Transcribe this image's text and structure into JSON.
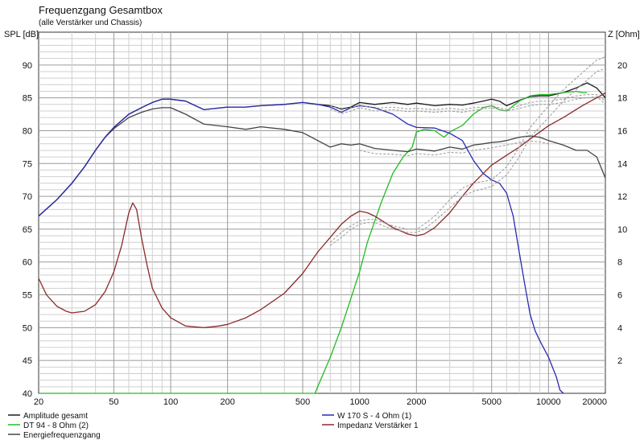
{
  "chart_data": {
    "type": "line",
    "title": "Frequenzgang Gesamtbox",
    "subtitle": "(alle Verstärker und Chassis)",
    "ylabel": "SPL [dB]",
    "y2label": "Z [Ohm]",
    "xscale": "log",
    "xlim": [
      20,
      20000
    ],
    "ylim": [
      40,
      95
    ],
    "y2lim": [
      0,
      22
    ],
    "xticks": [
      "20",
      "50",
      "100",
      "200",
      "500",
      "1000",
      "2000",
      "5000",
      "10000",
      "20000"
    ],
    "yticks": [
      "40",
      "45",
      "50",
      "55",
      "60",
      "65",
      "70",
      "75",
      "80",
      "85",
      "90"
    ],
    "y2ticks": [
      "2",
      "4",
      "6",
      "8",
      "10",
      "12",
      "14",
      "16",
      "18",
      "20"
    ],
    "grid": true,
    "legend_position": "bottom",
    "series": [
      {
        "name": "Amplitude gesamt",
        "axis": "left",
        "color": "#1a1a1a",
        "x": [
          20,
          25,
          30,
          35,
          40,
          45,
          50,
          60,
          70,
          80,
          90,
          100,
          120,
          150,
          200,
          250,
          300,
          400,
          500,
          600,
          700,
          800,
          900,
          1000,
          1200,
          1500,
          1800,
          2000,
          2500,
          3000,
          3500,
          4000,
          4500,
          5000,
          5500,
          6000,
          7000,
          8000,
          9000,
          10000,
          12000,
          14000,
          16000,
          18000,
          20000
        ],
        "y": [
          67,
          69.5,
          72,
          74.5,
          77,
          79,
          80.5,
          82.5,
          83.5,
          84.3,
          84.8,
          84.8,
          84.5,
          83.2,
          83.6,
          83.6,
          83.8,
          84.0,
          84.3,
          84.0,
          83.8,
          83.3,
          83.6,
          84.3,
          84.0,
          84.3,
          84.0,
          84.2,
          83.8,
          84.0,
          83.9,
          84.2,
          84.5,
          84.8,
          84.5,
          83.8,
          84.6,
          85.2,
          85.3,
          85.3,
          85.8,
          86.5,
          87.3,
          86.5,
          85.0
        ]
      },
      {
        "name": "DT 94 - 8 Ohm (2)",
        "axis": "left",
        "color": "#22bb22",
        "x": [
          20,
          580,
          700,
          800,
          900,
          1000,
          1100,
          1300,
          1500,
          1700,
          1900,
          2000,
          2200,
          2500,
          2800,
          3000,
          3500,
          4000,
          4500,
          5000,
          5500,
          6000,
          7000,
          8000,
          9000,
          10000,
          12000,
          14000,
          15000,
          16000
        ],
        "y": [
          40,
          40,
          45.5,
          50,
          54.5,
          58.5,
          63,
          69,
          73.5,
          76,
          77.5,
          79.8,
          80.2,
          80.0,
          79.0,
          79.8,
          80.8,
          82.5,
          83.5,
          83.8,
          83.2,
          83.0,
          84.5,
          85.3,
          85.5,
          85.5,
          85.8,
          86.0,
          85.8,
          85.8
        ]
      },
      {
        "name": "Energiefrequenzgang",
        "axis": "left",
        "color": "#444444",
        "x": [
          20,
          25,
          30,
          35,
          40,
          45,
          50,
          60,
          70,
          80,
          90,
          100,
          120,
          150,
          200,
          250,
          300,
          400,
          500,
          600,
          700,
          800,
          900,
          1000,
          1200,
          1500,
          1800,
          2000,
          2500,
          3000,
          3500,
          4000,
          4500,
          5000,
          5500,
          6000,
          7000,
          8000,
          9000,
          10000,
          12000,
          14000,
          16000,
          18000,
          20000
        ],
        "y": [
          67,
          69.5,
          72,
          74.5,
          77,
          79,
          80.3,
          82,
          82.8,
          83.3,
          83.5,
          83.5,
          82.5,
          81.0,
          80.6,
          80.2,
          80.6,
          80.2,
          79.7,
          78.5,
          77.5,
          78.0,
          77.8,
          78.0,
          77.3,
          77.0,
          76.8,
          77.2,
          76.9,
          77.5,
          77.2,
          77.8,
          78.0,
          78.2,
          78.3,
          78.5,
          79.0,
          79.2,
          79.0,
          78.5,
          77.8,
          77.0,
          77.0,
          76.0,
          72.8
        ]
      },
      {
        "name": "W 170 S - 4 Ohm (1)",
        "axis": "left",
        "color": "#2a2ab0",
        "x": [
          20,
          25,
          30,
          35,
          40,
          45,
          50,
          60,
          70,
          80,
          90,
          100,
          120,
          150,
          200,
          250,
          300,
          400,
          500,
          600,
          700,
          800,
          900,
          1000,
          1200,
          1500,
          1800,
          2000,
          2500,
          3000,
          3500,
          4000,
          4500,
          5000,
          5500,
          6000,
          6500,
          7000,
          7500,
          8000,
          8500,
          9000,
          10000,
          11000,
          11500,
          12000
        ],
        "y": [
          67,
          69.5,
          72,
          74.5,
          77,
          79,
          80.5,
          82.5,
          83.5,
          84.3,
          84.8,
          84.8,
          84.5,
          83.2,
          83.6,
          83.6,
          83.8,
          84.0,
          84.3,
          84.0,
          83.6,
          82.8,
          83.5,
          83.8,
          83.5,
          82.5,
          81.0,
          80.5,
          80.4,
          79.6,
          78.5,
          75.5,
          73.5,
          72.5,
          72.0,
          70.5,
          67.0,
          61.5,
          56.5,
          52.0,
          49.5,
          48.0,
          45.5,
          42.5,
          40.5,
          40
        ]
      },
      {
        "name": "Impedanz Verstärker 1",
        "axis": "right",
        "color": "#8b2a2a",
        "x": [
          20,
          22,
          25,
          28,
          30,
          35,
          40,
          45,
          50,
          55,
          60,
          63,
          66,
          70,
          75,
          80,
          90,
          100,
          120,
          150,
          180,
          200,
          250,
          300,
          400,
          500,
          600,
          700,
          800,
          900,
          1000,
          1100,
          1200,
          1500,
          1800,
          2000,
          2200,
          2500,
          3000,
          3500,
          4000,
          5000,
          6000,
          7000,
          8000,
          10000,
          12000,
          15000,
          18000,
          20000
        ],
        "y": [
          7.0,
          6.0,
          5.3,
          5.0,
          4.9,
          5.0,
          5.4,
          6.2,
          7.4,
          9.0,
          11.0,
          11.6,
          11.2,
          9.5,
          7.8,
          6.4,
          5.2,
          4.6,
          4.1,
          4.0,
          4.1,
          4.2,
          4.6,
          5.1,
          6.1,
          7.3,
          8.6,
          9.5,
          10.3,
          10.8,
          11.1,
          11.0,
          10.8,
          10.1,
          9.7,
          9.6,
          9.7,
          10.1,
          11.0,
          12.0,
          12.8,
          13.9,
          14.5,
          15.0,
          15.5,
          16.3,
          16.8,
          17.5,
          18.0,
          18.3
        ]
      },
      {
        "name": "",
        "axis": "left",
        "color": "#999999",
        "dashed": true,
        "x": [
          700,
          800,
          900,
          1000,
          1200,
          1500,
          1800,
          2000,
          2500,
          3000,
          3500,
          4000,
          4500,
          5000,
          5500,
          6000,
          7000,
          8000,
          9000,
          10000,
          12000,
          14000,
          16000,
          18000,
          20000
        ],
        "y": [
          83.8,
          83.2,
          83.5,
          83.9,
          83.4,
          83.6,
          83.3,
          83.4,
          83.2,
          83.4,
          83.2,
          83.5,
          83.6,
          83.8,
          83.5,
          83.2,
          83.8,
          84.3,
          84.5,
          84.5,
          84.8,
          85.3,
          85.5,
          85.5,
          84.5
        ]
      },
      {
        "name": "",
        "axis": "left",
        "color": "#999999",
        "dashed": true,
        "x": [
          700,
          800,
          900,
          1000,
          1200,
          1500,
          1800,
          2000,
          2500,
          3000,
          3500,
          4000,
          4500,
          5000,
          5500,
          6000,
          7000,
          8000,
          9000,
          10000,
          12000,
          14000,
          16000,
          18000,
          20000
        ],
        "y": [
          83.3,
          82.6,
          83.0,
          83.5,
          83.0,
          83.2,
          82.9,
          83.0,
          82.8,
          83.0,
          82.8,
          83.1,
          83.3,
          83.5,
          83.2,
          83.0,
          83.4,
          83.8,
          84.0,
          84.0,
          84.3,
          84.8,
          85.0,
          85.2,
          84.0
        ]
      },
      {
        "name": "",
        "axis": "left",
        "color": "#999999",
        "dashed": true,
        "x": [
          1000,
          1200,
          1500,
          1800,
          2000,
          2500,
          3000,
          3500,
          4000,
          4500,
          5000,
          5500,
          6000,
          7000,
          8000,
          9000,
          10000
        ],
        "y": [
          77.0,
          76.5,
          76.4,
          76.2,
          76.5,
          76.3,
          76.7,
          76.6,
          77.0,
          77.2,
          77.4,
          77.6,
          77.8,
          78.2,
          78.4,
          78.3,
          78.0
        ]
      },
      {
        "name": "",
        "axis": "right",
        "color": "#999999",
        "dashed": true,
        "x": [
          700,
          800,
          900,
          1000,
          1100,
          1200,
          1500,
          1800,
          2000,
          2200,
          2500,
          3000,
          3500,
          4000,
          5000,
          6000,
          7000,
          8000,
          10000,
          12000,
          15000,
          18000,
          20000
        ],
        "y": [
          9.2,
          9.8,
          10.2,
          10.5,
          10.6,
          10.6,
          10.2,
          10.0,
          10.0,
          10.3,
          10.8,
          11.8,
          12.5,
          12.8,
          13.0,
          13.8,
          15.0,
          16.2,
          17.5,
          18.5,
          19.5,
          20.3,
          20.5
        ]
      },
      {
        "name": "",
        "axis": "right",
        "color": "#999999",
        "dashed": true,
        "x": [
          700,
          800,
          900,
          1000,
          1100,
          1200,
          1500,
          1800,
          2000,
          2200,
          2500,
          3000,
          3500,
          4000,
          5000,
          6000,
          7000,
          8000,
          10000,
          12000,
          15000,
          18000,
          20000
        ],
        "y": [
          9.0,
          9.5,
          10.0,
          10.3,
          10.4,
          10.4,
          10.0,
          9.8,
          9.8,
          10.0,
          10.5,
          11.3,
          12.0,
          12.3,
          12.6,
          13.3,
          14.4,
          15.6,
          16.8,
          17.8,
          18.8,
          19.6,
          19.8
        ]
      }
    ],
    "legend": [
      {
        "label": "Amplitude gesamt",
        "color": "#1a1a1a"
      },
      {
        "label": "W 170 S - 4 Ohm (1)",
        "color": "#2a2ab0"
      },
      {
        "label": "DT 94 - 8 Ohm (2)",
        "color": "#22bb22"
      },
      {
        "label": "Impedanz Verstärker 1",
        "color": "#8b2a2a"
      },
      {
        "label": "Energiefrequenzgang",
        "color": "#444444"
      }
    ]
  }
}
